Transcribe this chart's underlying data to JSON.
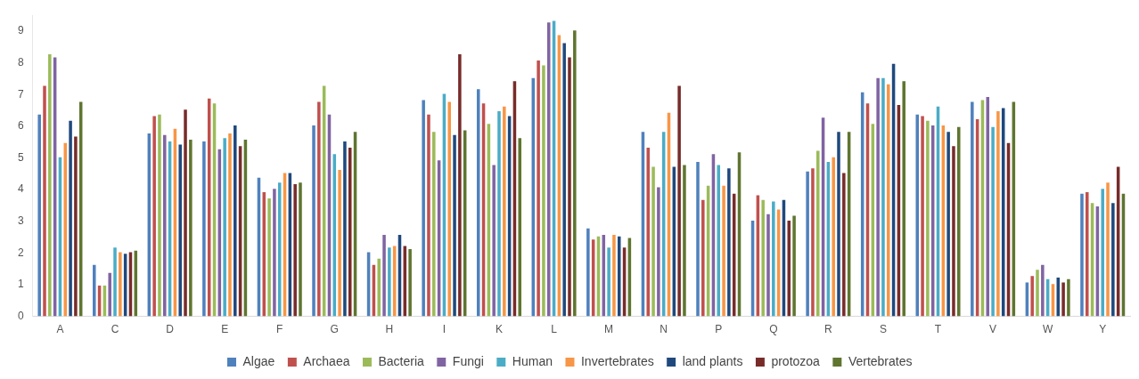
{
  "chart_data": {
    "type": "bar",
    "categories": [
      "A",
      "C",
      "D",
      "E",
      "F",
      "G",
      "H",
      "I",
      "K",
      "L",
      "M",
      "N",
      "P",
      "Q",
      "R",
      "S",
      "T",
      "V",
      "W",
      "Y"
    ],
    "ylim": [
      0,
      9.5
    ],
    "yticks": [
      0,
      1,
      2,
      3,
      4,
      5,
      6,
      7,
      8,
      9
    ],
    "grid": false,
    "legend": "bottom",
    "series": [
      {
        "name": "Algae",
        "color": "#4f81bd",
        "values": [
          6.4,
          1.65,
          5.8,
          5.55,
          4.4,
          6.05,
          2.05,
          6.85,
          7.2,
          7.55,
          2.8,
          5.85,
          4.9,
          3.05,
          4.6,
          7.1,
          6.4,
          6.8,
          1.1,
          3.9
        ]
      },
      {
        "name": "Archaea",
        "color": "#c0504d",
        "values": [
          7.3,
          1.0,
          6.35,
          6.9,
          3.95,
          6.8,
          1.65,
          6.4,
          6.75,
          8.1,
          2.45,
          5.35,
          3.7,
          3.85,
          4.7,
          6.75,
          6.35,
          6.25,
          1.3,
          3.95
        ]
      },
      {
        "name": "Bacteria",
        "color": "#9bbb59",
        "values": [
          8.3,
          1.0,
          6.4,
          6.75,
          3.75,
          7.3,
          1.85,
          5.85,
          6.1,
          7.95,
          2.55,
          4.75,
          4.15,
          3.7,
          5.25,
          6.1,
          6.2,
          6.85,
          1.5,
          3.6
        ]
      },
      {
        "name": "Fungi",
        "color": "#8064a2",
        "values": [
          8.2,
          1.4,
          5.75,
          5.3,
          4.05,
          6.4,
          2.6,
          4.95,
          4.8,
          9.3,
          2.6,
          4.1,
          5.15,
          3.25,
          6.3,
          7.55,
          6.05,
          6.95,
          1.65,
          3.5
        ]
      },
      {
        "name": "Human",
        "color": "#4bacc6",
        "values": [
          5.05,
          2.2,
          5.55,
          5.65,
          4.25,
          5.15,
          2.2,
          7.05,
          6.5,
          9.35,
          2.2,
          5.85,
          4.8,
          3.65,
          4.9,
          7.55,
          6.65,
          6.0,
          1.2,
          4.05
        ]
      },
      {
        "name": "Invertebrates",
        "color": "#f79646",
        "values": [
          5.5,
          2.05,
          5.95,
          5.8,
          4.55,
          4.65,
          2.25,
          6.8,
          6.65,
          8.9,
          2.6,
          6.45,
          4.15,
          3.4,
          5.05,
          7.35,
          6.05,
          6.5,
          1.05,
          4.25
        ]
      },
      {
        "name": "land plants",
        "color": "#1f497d",
        "values": [
          6.2,
          2.0,
          5.45,
          6.05,
          4.55,
          5.55,
          2.6,
          5.75,
          6.35,
          8.65,
          2.55,
          4.75,
          4.7,
          3.7,
          5.85,
          8.0,
          5.85,
          6.6,
          1.25,
          3.6
        ]
      },
      {
        "name": "protozoa",
        "color": "#772c2a",
        "values": [
          5.7,
          2.05,
          6.55,
          5.4,
          4.2,
          5.35,
          2.25,
          8.3,
          7.45,
          8.2,
          2.2,
          7.3,
          3.9,
          3.05,
          4.55,
          6.7,
          5.4,
          5.5,
          1.1,
          4.75
        ]
      },
      {
        "name": "Vertebrates",
        "color": "#5f7530",
        "values": [
          6.8,
          2.1,
          5.6,
          5.6,
          4.25,
          5.85,
          2.15,
          5.9,
          5.65,
          9.05,
          2.5,
          4.8,
          5.2,
          3.2,
          5.85,
          7.45,
          6.0,
          6.8,
          1.2,
          3.9
        ]
      }
    ]
  }
}
